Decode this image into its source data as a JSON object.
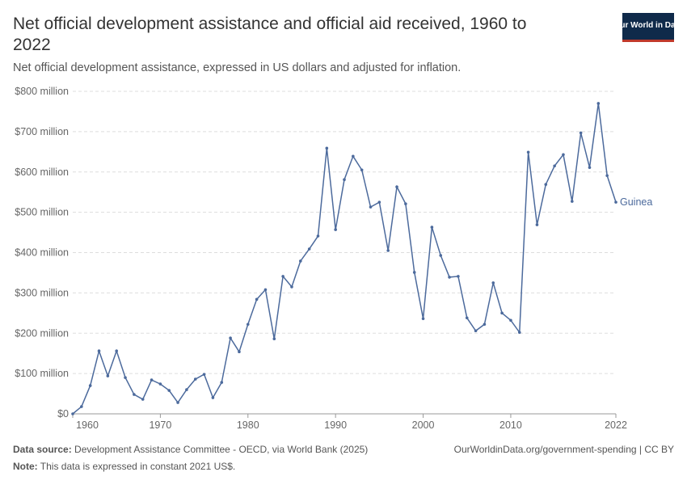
{
  "header": {
    "title": "Net official development assistance and official aid received, 1960 to 2022",
    "subtitle": "Net official development assistance, expressed in US dollars and adjusted for inflation.",
    "logo": "Our World in Data"
  },
  "chart_data": {
    "type": "line",
    "x": [
      1960,
      1961,
      1962,
      1963,
      1964,
      1965,
      1966,
      1967,
      1968,
      1969,
      1970,
      1971,
      1972,
      1973,
      1974,
      1975,
      1976,
      1977,
      1978,
      1979,
      1980,
      1981,
      1982,
      1983,
      1984,
      1985,
      1986,
      1987,
      1988,
      1989,
      1990,
      1991,
      1992,
      1993,
      1994,
      1995,
      1996,
      1997,
      1998,
      1999,
      2000,
      2001,
      2002,
      2003,
      2004,
      2005,
      2006,
      2007,
      2008,
      2009,
      2010,
      2011,
      2012,
      2013,
      2014,
      2015,
      2016,
      2017,
      2018,
      2019,
      2020,
      2021,
      2022
    ],
    "series": [
      {
        "name": "Guinea",
        "color": "#4c6a9c",
        "values": [
          0,
          18,
          70,
          156,
          94,
          156,
          90,
          48,
          36,
          84,
          74,
          58,
          28,
          60,
          86,
          98,
          40,
          78,
          188,
          154,
          222,
          284,
          308,
          186,
          341,
          315,
          379,
          409,
          441,
          659,
          457,
          581,
          639,
          605,
          513,
          525,
          405,
          563,
          521,
          351,
          236,
          463,
          393,
          339,
          341,
          238,
          206,
          222,
          325,
          250,
          232,
          202,
          649,
          469,
          569,
          615,
          643,
          527,
          697,
          611,
          770,
          591,
          525
        ]
      }
    ],
    "xlim": [
      1960,
      2022
    ],
    "xticks": [
      1960,
      1970,
      1980,
      1990,
      2000,
      2010,
      2022
    ],
    "ylim": [
      0,
      800
    ],
    "yticks": [
      {
        "value": 0,
        "label": "$0"
      },
      {
        "value": 100,
        "label": "$100 million"
      },
      {
        "value": 200,
        "label": "$200 million"
      },
      {
        "value": 300,
        "label": "$300 million"
      },
      {
        "value": 400,
        "label": "$400 million"
      },
      {
        "value": 500,
        "label": "$500 million"
      },
      {
        "value": 600,
        "label": "$600 million"
      },
      {
        "value": 700,
        "label": "$700 million"
      },
      {
        "value": 800,
        "label": "$800 million"
      }
    ],
    "grid": true
  },
  "footer": {
    "source_label": "Data source:",
    "source": "Development Assistance Committee - OECD, via World Bank (2025)",
    "url": "OurWorldinData.org/government-spending | CC BY",
    "note_label": "Note:",
    "note": "This data is expressed in constant 2021 US$."
  }
}
